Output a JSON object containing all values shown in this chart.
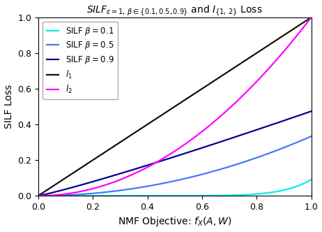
{
  "title": "$\\mathit{SILF}_{\\varepsilon = 1,\\, \\beta \\in \\{0.1, 0.5, 0.9\\}}$ and $\\mathit{I}_{\\{1,\\, 2\\}}$ Loss",
  "xlabel": "NMF Objective: $f_X(A, W)$",
  "ylabel": "SILF Loss",
  "xlim": [
    0.0,
    1.0
  ],
  "ylim": [
    0.0,
    1.0
  ],
  "xticks": [
    0.0,
    0.2,
    0.4,
    0.6,
    0.8,
    1.0
  ],
  "yticks": [
    0.0,
    0.2,
    0.4,
    0.6,
    0.8,
    1.0
  ],
  "silf_lines": [
    {
      "label": "SILF $\\beta = 0.1$",
      "beta": 0.1,
      "color": "#00EEEE",
      "lw": 1.6
    },
    {
      "label": "SILF $\\beta = 0.5$",
      "beta": 0.5,
      "color": "#4477FF",
      "lw": 1.6
    },
    {
      "label": "SILF $\\beta = 0.9$",
      "beta": 0.9,
      "color": "#00008B",
      "lw": 1.6
    }
  ],
  "l1_label": "$l_1$",
  "l1_color": "#111111",
  "l1_lw": 1.6,
  "l2_label": "$l_2$",
  "l2_color": "#FF00FF",
  "l2_lw": 1.6,
  "legend_loc": "upper left",
  "legend_fontsize": 8.5,
  "title_fontsize": 10,
  "label_fontsize": 10,
  "tick_fontsize": 9,
  "epsilon": 1.0
}
